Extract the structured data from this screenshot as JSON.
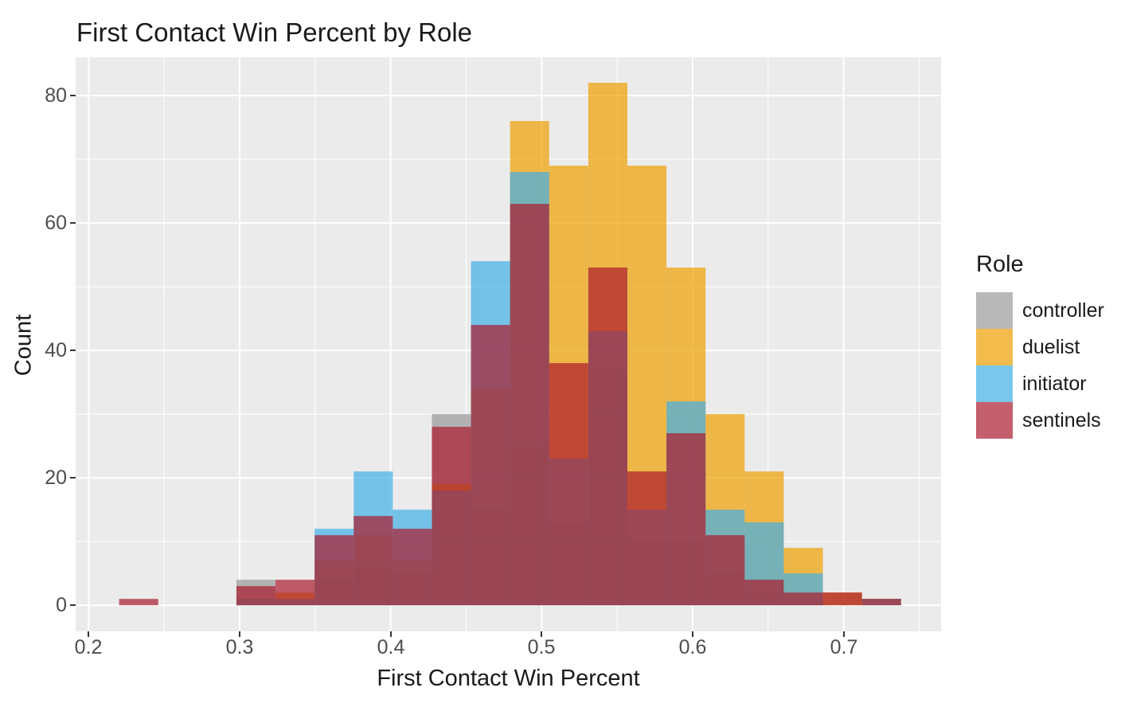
{
  "colors": {
    "background": "#FFFFFF",
    "panel_background": "#EBEBEB",
    "gridline": "#FFFFFF",
    "text": "#1A1A1A",
    "tick_label": "#4D4D4D"
  },
  "chart_data": {
    "type": "histogram",
    "mode": "overlay",
    "title": "First Contact Win Percent by Role",
    "xlabel": "First Contact Win Percent",
    "ylabel": "Count",
    "legend_title": "Role",
    "legend_position": "right",
    "grid": true,
    "alpha": 0.7,
    "x_ticks": [
      0.2,
      0.3,
      0.4,
      0.5,
      0.6,
      0.7
    ],
    "x_tick_labels": [
      "0.2",
      "0.3",
      "0.4",
      "0.5",
      "0.6",
      "0.7"
    ],
    "x_minor_ticks": [
      0.25,
      0.35,
      0.45,
      0.55,
      0.65,
      0.75
    ],
    "y_ticks": [
      0,
      20,
      40,
      60,
      80
    ],
    "y_tick_labels": [
      "0",
      "20",
      "40",
      "60",
      "80"
    ],
    "y_minor_ticks": [
      10,
      30,
      50,
      70
    ],
    "x_range": [
      0.1914,
      0.7645
    ],
    "y_range": [
      -4.1,
      86.0
    ],
    "bin_start": 0.2202,
    "bin_width": 0.02589,
    "series": [
      {
        "name": "controller",
        "color": "#999999",
        "counts": [
          0,
          0,
          0,
          4,
          1,
          4,
          6,
          5,
          30,
          15,
          25,
          13,
          37,
          10,
          10,
          5,
          2,
          1,
          0,
          0
        ]
      },
      {
        "name": "duelist",
        "color": "#EE9F00",
        "counts": [
          0,
          0,
          0,
          1,
          2,
          7,
          11,
          7,
          19,
          34,
          76,
          69,
          82,
          69,
          53,
          30,
          21,
          9,
          2,
          1
        ]
      },
      {
        "name": "initiator",
        "color": "#41AFE5",
        "counts": [
          0,
          0,
          0,
          1,
          1,
          12,
          21,
          15,
          18,
          54,
          68,
          23,
          43,
          15,
          32,
          15,
          13,
          5,
          0,
          1
        ]
      },
      {
        "name": "sentinels",
        "color": "#AB1A2E",
        "counts": [
          1,
          0,
          0,
          3,
          4,
          11,
          14,
          12,
          28,
          44,
          63,
          38,
          53,
          21,
          27,
          11,
          4,
          2,
          2,
          1
        ]
      }
    ]
  }
}
